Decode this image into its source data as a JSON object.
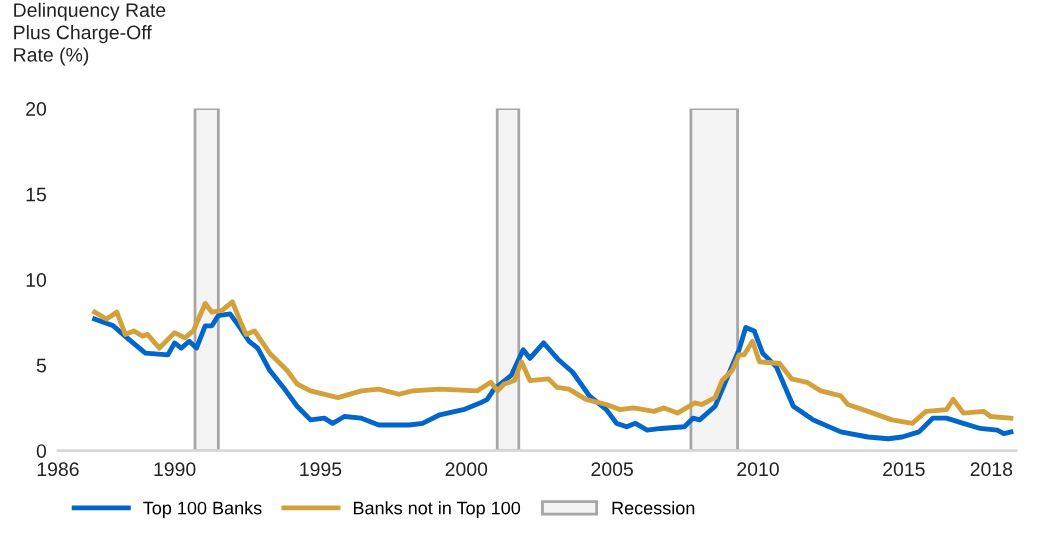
{
  "chart_data": {
    "type": "line",
    "ylabel": "Delinquency Rate\nPlus Charge-Off\nRate (%)",
    "xlim": [
      1986,
      2018.85
    ],
    "xticks": [
      1986,
      1990,
      1995,
      2000,
      2005,
      2010,
      2015,
      2018
    ],
    "ylim": [
      0,
      20
    ],
    "yticks": [
      0,
      5,
      10,
      15,
      20
    ],
    "grid": false,
    "legend": "bottom",
    "line_style": "solid",
    "series": [
      {
        "name": "Top 100 Banks",
        "color": "#0066cc",
        "x": [
          1987.26,
          1987.9,
          1988.37,
          1989.0,
          1989.77,
          1990.0,
          1990.23,
          1990.5,
          1990.75,
          1991.05,
          1991.28,
          1991.5,
          1991.9,
          1992.2,
          1992.55,
          1992.85,
          1993.26,
          1993.73,
          1994.2,
          1994.66,
          1995.13,
          1995.42,
          1995.82,
          1996.4,
          1997.0,
          1998.04,
          1998.5,
          1999.09,
          1999.9,
          2000.49,
          2000.72,
          2000.95,
          2001.54,
          2001.95,
          2002.18,
          2002.65,
          2003.17,
          2003.64,
          2004.22,
          2004.8,
          2005.15,
          2005.5,
          2005.8,
          2006.2,
          2006.67,
          2007.48,
          2007.77,
          2008.0,
          2008.53,
          2009.0,
          2009.35,
          2009.58,
          2009.87,
          2010.16,
          2010.63,
          2011.21,
          2011.9,
          2012.84,
          2013.77,
          2014.47,
          2014.94,
          2015.52,
          2015.99,
          2016.46,
          2017.04,
          2017.62,
          2018.2,
          2018.43,
          2018.67
        ],
        "values": [
          7.7,
          7.3,
          6.6,
          5.7,
          5.6,
          6.3,
          6.0,
          6.4,
          6.0,
          7.3,
          7.3,
          7.9,
          8.0,
          7.3,
          6.4,
          6.0,
          4.7,
          3.7,
          2.6,
          1.8,
          1.9,
          1.6,
          2.0,
          1.9,
          1.5,
          1.5,
          1.6,
          2.1,
          2.4,
          2.8,
          3.0,
          3.6,
          4.4,
          5.9,
          5.4,
          6.3,
          5.3,
          4.6,
          3.2,
          2.4,
          1.6,
          1.4,
          1.6,
          1.2,
          1.3,
          1.4,
          1.9,
          1.8,
          2.6,
          4.5,
          5.9,
          7.2,
          7.0,
          5.7,
          4.9,
          2.6,
          1.8,
          1.1,
          0.8,
          0.7,
          0.8,
          1.1,
          1.9,
          1.9,
          1.6,
          1.3,
          1.2,
          1.0,
          1.1
        ]
      },
      {
        "name": "Banks not in Top 100",
        "color": "#d4a03a",
        "x": [
          1987.26,
          1987.67,
          1988.02,
          1988.31,
          1988.6,
          1988.9,
          1989.07,
          1989.48,
          1990.0,
          1990.35,
          1990.64,
          1991.05,
          1991.28,
          1991.63,
          1991.98,
          1992.27,
          1992.45,
          1992.74,
          1993.26,
          1993.85,
          1994.2,
          1994.66,
          1995.6,
          1996.4,
          1997.0,
          1997.69,
          1998.16,
          1999.09,
          2000.37,
          2000.84,
          2001.07,
          2001.3,
          2001.65,
          2001.89,
          2002.18,
          2002.82,
          2003.11,
          2003.52,
          2004.1,
          2004.8,
          2005.27,
          2005.73,
          2006.43,
          2006.78,
          2007.24,
          2007.84,
          2008.07,
          2008.53,
          2008.77,
          2009.12,
          2009.35,
          2009.52,
          2009.81,
          2010.05,
          2010.74,
          2011.15,
          2011.68,
          2012.15,
          2012.84,
          2013.08,
          2013.77,
          2014.59,
          2015.29,
          2015.76,
          2016.46,
          2016.69,
          2017.04,
          2017.74,
          2017.97,
          2018.67
        ],
        "values": [
          8.1,
          7.7,
          8.1,
          6.8,
          7.0,
          6.7,
          6.8,
          6.0,
          6.9,
          6.6,
          7.0,
          8.6,
          8.1,
          8.2,
          8.7,
          7.5,
          6.8,
          7.0,
          5.7,
          4.7,
          3.9,
          3.5,
          3.1,
          3.5,
          3.6,
          3.3,
          3.5,
          3.6,
          3.5,
          4.0,
          3.5,
          3.9,
          4.1,
          5.2,
          4.1,
          4.2,
          3.7,
          3.6,
          3.0,
          2.7,
          2.4,
          2.5,
          2.3,
          2.5,
          2.2,
          2.8,
          2.7,
          3.1,
          4.1,
          4.7,
          5.6,
          5.6,
          6.4,
          5.2,
          5.1,
          4.2,
          4.0,
          3.5,
          3.2,
          2.7,
          2.3,
          1.8,
          1.6,
          2.3,
          2.4,
          3.0,
          2.2,
          2.3,
          2.0,
          1.9
        ]
      }
    ],
    "bands": [
      {
        "axis": "x",
        "from": 1990.7,
        "to": 1991.5,
        "label": "Recession",
        "color": "#a6a6a6"
      },
      {
        "axis": "x",
        "from": 2001.06,
        "to": 2001.8,
        "color": "#a6a6a6"
      },
      {
        "axis": "x",
        "from": 2007.7,
        "to": 2009.3,
        "color": "#a6a6a6"
      }
    ]
  }
}
